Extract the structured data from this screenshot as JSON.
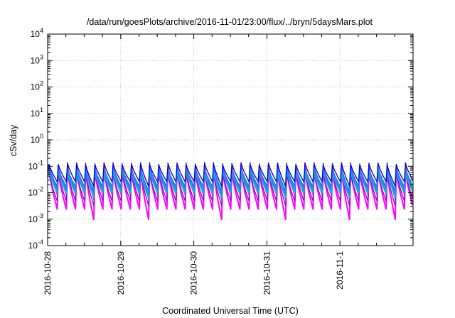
{
  "chart_data": {
    "type": "line",
    "title": "/data/run/goesPlots/archive/2016-11-01/23:00/flux/../bryn/5daysMars.plot",
    "xlabel": "Coordinated Universal Time (UTC)",
    "ylabel": "cSv/day",
    "yscale": "log",
    "ylim": [
      0.0001,
      10000
    ],
    "y_ticks": [
      {
        "base": "10",
        "exp": "-4"
      },
      {
        "base": "10",
        "exp": "-3"
      },
      {
        "base": "10",
        "exp": "-2"
      },
      {
        "base": "10",
        "exp": "-1"
      },
      {
        "base": "10",
        "exp": "0"
      },
      {
        "base": "10",
        "exp": "1"
      },
      {
        "base": "10",
        "exp": "2"
      },
      {
        "base": "10",
        "exp": "3"
      },
      {
        "base": "10",
        "exp": "4"
      }
    ],
    "xlim": [
      "2016-10-28",
      "2016-11-02"
    ],
    "x_ticks": [
      "2016-10-28",
      "2016-10-29",
      "2016-10-30",
      "2016-10-31",
      "2016-11-1"
    ],
    "grid": true,
    "pattern": {
      "period_hours": 3,
      "phase_hours": 0.5,
      "dip_periods": [
        4,
        10,
        18,
        25,
        32,
        37
      ],
      "dip_extra_decades": 0.28
    },
    "series": [
      {
        "color": "#ff00ff",
        "peak": 0.068,
        "trough": 0.0024,
        "width": 2.0
      },
      {
        "color": "#ff3030",
        "peak": 0.11,
        "trough": 0.0082,
        "width": 1.3
      },
      {
        "color": "#9400d3",
        "peak": 0.06,
        "trough": 0.0048,
        "width": 1.3
      },
      {
        "color": "#00a060",
        "peak": 0.065,
        "trough": 0.0105,
        "width": 1.3
      },
      {
        "color": "#00c0c0",
        "peak": 0.06,
        "trough": 0.0095,
        "width": 1.6
      },
      {
        "color": "#4169e1",
        "peak": 0.085,
        "trough": 0.016,
        "width": 2.2
      },
      {
        "color": "#1e90ff",
        "peak": 0.07,
        "trough": 0.013,
        "width": 1.6
      },
      {
        "color": "#0000cd",
        "peak": 0.125,
        "trough": 0.026,
        "width": 1.3
      }
    ]
  }
}
